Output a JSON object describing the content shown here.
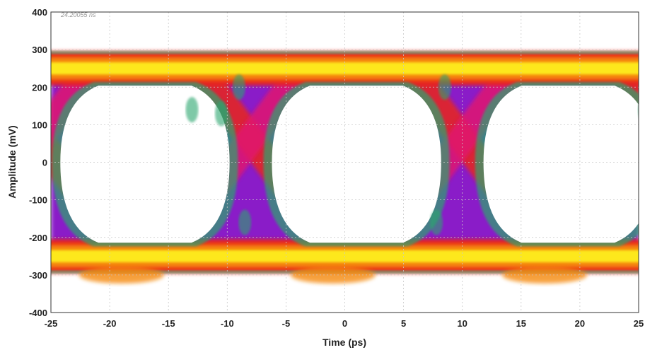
{
  "chart_data": {
    "type": "heatmap",
    "title": "",
    "xlabel": "Time (ps)",
    "ylabel": "Amplitude (mV)",
    "xlim": [
      -25,
      25
    ],
    "ylim": [
      -400,
      400
    ],
    "xticks": [
      -25,
      -20,
      -15,
      -10,
      -5,
      0,
      5,
      10,
      15,
      20,
      25
    ],
    "yticks": [
      -400,
      -300,
      -200,
      -100,
      0,
      100,
      200,
      300,
      400
    ],
    "grid": true,
    "annotation": "24.20055 ns",
    "unit_interval_ps": 18,
    "eye_centers_ps": [
      -17,
      1,
      19
    ],
    "crossings_ps": [
      -26,
      -8,
      10
    ],
    "rail_levels_mv": [
      250,
      -250
    ],
    "eye_opening_mv": [
      -210,
      200
    ],
    "colormap": [
      "#ffffff",
      "#2aa66e",
      "#2b4ad0",
      "#8a1fc8",
      "#e01870",
      "#e8281e",
      "#f58a10",
      "#fde81e"
    ]
  }
}
